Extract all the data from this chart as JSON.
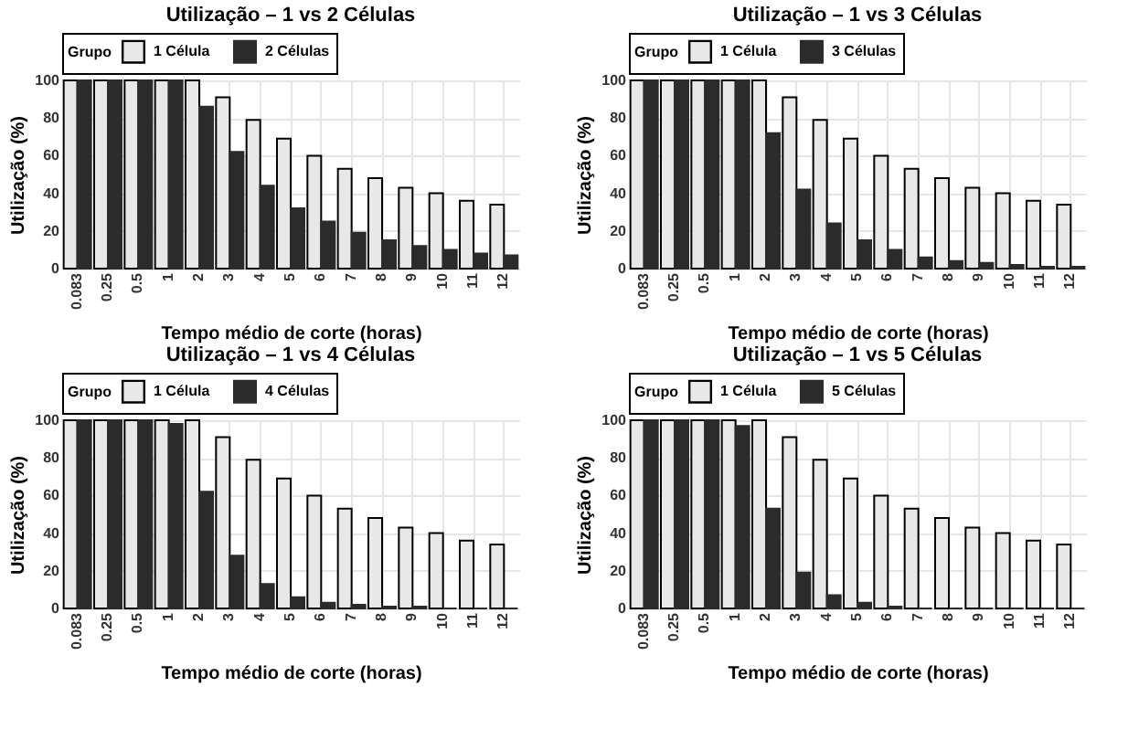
{
  "chart_data": [
    {
      "type": "bar",
      "title": "Utilização – 1 vs 2 Células",
      "xlabel": "Tempo médio de corte (horas)",
      "ylabel": "Utilização (%)",
      "legend_title": "Grupo",
      "legend": "top",
      "grid": true,
      "ylim": [
        0,
        100
      ],
      "yticks": [
        0,
        20,
        40,
        60,
        80,
        100
      ],
      "categories": [
        "0.083",
        "0.25",
        "0.5",
        "1",
        "2",
        "3",
        "4",
        "5",
        "6",
        "7",
        "8",
        "9",
        "10",
        "11",
        "12"
      ],
      "series": [
        {
          "name": "1 Célula",
          "color": "#e8e8e8",
          "values": [
            100,
            100,
            100,
            100,
            100,
            91,
            79,
            69,
            60,
            53,
            48,
            43,
            40,
            36,
            34
          ]
        },
        {
          "name": "2 Células",
          "color": "#2b2b2b",
          "values": [
            100,
            100,
            100,
            100,
            86,
            62,
            44,
            32,
            25,
            19,
            15,
            12,
            10,
            8,
            7
          ]
        }
      ]
    },
    {
      "type": "bar",
      "title": "Utilização – 1 vs 3 Células",
      "xlabel": "Tempo médio de corte (horas)",
      "ylabel": "Utilização (%)",
      "legend_title": "Grupo",
      "legend": "top",
      "grid": true,
      "ylim": [
        0,
        100
      ],
      "yticks": [
        0,
        20,
        40,
        60,
        80,
        100
      ],
      "categories": [
        "0.083",
        "0.25",
        "0.5",
        "1",
        "2",
        "3",
        "4",
        "5",
        "6",
        "7",
        "8",
        "9",
        "10",
        "11",
        "12"
      ],
      "series": [
        {
          "name": "1 Célula",
          "color": "#e8e8e8",
          "values": [
            100,
            100,
            100,
            100,
            100,
            91,
            79,
            69,
            60,
            53,
            48,
            43,
            40,
            36,
            34
          ]
        },
        {
          "name": "3 Células",
          "color": "#2b2b2b",
          "values": [
            100,
            100,
            100,
            100,
            72,
            42,
            24,
            15,
            10,
            6,
            4,
            3,
            2,
            1,
            1
          ]
        }
      ]
    },
    {
      "type": "bar",
      "title": "Utilização – 1 vs 4 Células",
      "xlabel": "Tempo médio de corte (horas)",
      "ylabel": "Utilização (%)",
      "legend_title": "Grupo",
      "legend": "top",
      "grid": true,
      "ylim": [
        0,
        100
      ],
      "yticks": [
        0,
        20,
        40,
        60,
        80,
        100
      ],
      "categories": [
        "0.083",
        "0.25",
        "0.5",
        "1",
        "2",
        "3",
        "4",
        "5",
        "6",
        "7",
        "8",
        "9",
        "10",
        "11",
        "12"
      ],
      "series": [
        {
          "name": "1 Célula",
          "color": "#e8e8e8",
          "values": [
            100,
            100,
            100,
            100,
            100,
            91,
            79,
            69,
            60,
            53,
            48,
            43,
            40,
            36,
            34
          ]
        },
        {
          "name": "4 Células",
          "color": "#2b2b2b",
          "values": [
            100,
            100,
            100,
            98,
            62,
            28,
            13,
            6,
            3,
            2,
            1,
            1,
            0,
            0,
            0
          ]
        }
      ]
    },
    {
      "type": "bar",
      "title": "Utilização – 1 vs 5 Células",
      "xlabel": "Tempo médio de corte (horas)",
      "ylabel": "Utilização (%)",
      "legend_title": "Grupo",
      "legend": "top",
      "grid": true,
      "ylim": [
        0,
        100
      ],
      "yticks": [
        0,
        20,
        40,
        60,
        80,
        100
      ],
      "categories": [
        "0.083",
        "0.25",
        "0.5",
        "1",
        "2",
        "3",
        "4",
        "5",
        "6",
        "7",
        "8",
        "9",
        "10",
        "11",
        "12"
      ],
      "series": [
        {
          "name": "1 Célula",
          "color": "#e8e8e8",
          "values": [
            100,
            100,
            100,
            100,
            100,
            91,
            79,
            69,
            60,
            53,
            48,
            43,
            40,
            36,
            34
          ]
        },
        {
          "name": "5 Células",
          "color": "#2b2b2b",
          "values": [
            100,
            100,
            100,
            97,
            53,
            19,
            7,
            3,
            1,
            0,
            0,
            0,
            0,
            0,
            0
          ]
        }
      ]
    }
  ]
}
